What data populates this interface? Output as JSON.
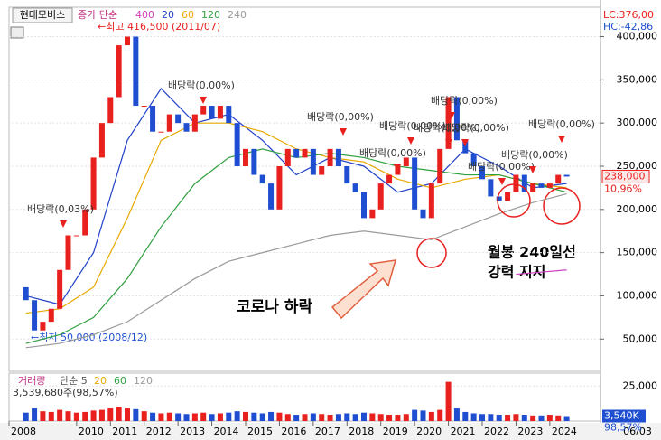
{
  "chart_data": {
    "type": "candlestick",
    "title": "현대모비스",
    "price_legend_label": "종가 단순",
    "x": [
      2008.5,
      2008.75,
      2009,
      2009.25,
      2009.5,
      2009.75,
      2010,
      2010.25,
      2010.5,
      2010.75,
      2011,
      2011.25,
      2011.5,
      2011.75,
      2012,
      2012.25,
      2012.5,
      2012.75,
      2013,
      2013.25,
      2013.5,
      2013.75,
      2014,
      2014.25,
      2014.5,
      2014.75,
      2015,
      2015.25,
      2015.5,
      2015.75,
      2016,
      2016.25,
      2016.5,
      2016.75,
      2017,
      2017.25,
      2017.5,
      2017.75,
      2018,
      2018.25,
      2018.5,
      2018.75,
      2019,
      2019.25,
      2019.5,
      2019.75,
      2020,
      2020.25,
      2020.5,
      2020.75,
      2021,
      2021.25,
      2021.5,
      2021.75,
      2022,
      2022.25,
      2022.5,
      2022.75,
      2023,
      2023.25,
      2023.5,
      2023.75,
      2024,
      2024.25,
      2024.5
    ],
    "open": [
      110000,
      95000,
      60000,
      70000,
      85000,
      130000,
      170000,
      170000,
      200000,
      260000,
      300000,
      330000,
      390000,
      400000,
      320000,
      320000,
      290000,
      290000,
      310000,
      300000,
      290000,
      310000,
      320000,
      305000,
      320000,
      300000,
      250000,
      270000,
      240000,
      230000,
      200000,
      250000,
      270000,
      260000,
      270000,
      240000,
      250000,
      270000,
      250000,
      230000,
      220000,
      190000,
      200000,
      230000,
      240000,
      250000,
      260000,
      200000,
      190000,
      230000,
      270000,
      330000,
      280000,
      265000,
      250000,
      235000,
      215000,
      210000,
      220000,
      240000,
      220000,
      230000,
      225000,
      230000,
      240000
    ],
    "close": [
      95000,
      60000,
      70000,
      85000,
      130000,
      170000,
      170000,
      200000,
      260000,
      300000,
      330000,
      390000,
      400000,
      320000,
      320000,
      290000,
      290000,
      310000,
      300000,
      290000,
      310000,
      320000,
      305000,
      320000,
      300000,
      250000,
      270000,
      240000,
      230000,
      200000,
      250000,
      270000,
      260000,
      270000,
      240000,
      250000,
      270000,
      250000,
      230000,
      220000,
      190000,
      200000,
      230000,
      240000,
      250000,
      260000,
      200000,
      190000,
      230000,
      270000,
      330000,
      280000,
      265000,
      250000,
      235000,
      215000,
      210000,
      220000,
      240000,
      220000,
      230000,
      225000,
      230000,
      240000,
      238000
    ],
    "colors": {
      "up": "#e8201e",
      "down": "#1f4fd0"
    },
    "xlim": [
      2008,
      2025.5
    ],
    "xticks": [
      2008,
      2010,
      2011,
      2012,
      2013,
      2014,
      2015,
      2016,
      2017,
      2018,
      2019,
      2020,
      2021,
      2022,
      2023,
      2024
    ],
    "ylim": [
      12650,
      434000
    ],
    "yticks": [
      {
        "value": 50000,
        "label": "50,000"
      },
      {
        "value": 100000,
        "label": "100,000"
      },
      {
        "value": 150000,
        "label": "150,000"
      },
      {
        "value": 200000,
        "label": "200,000"
      },
      {
        "value": 250000,
        "label": "250,000"
      },
      {
        "value": 300000,
        "label": "300,000"
      },
      {
        "value": 350000,
        "label": "350,000"
      },
      {
        "value": 400000,
        "label": "400,000"
      }
    ],
    "grid": true,
    "moving_averages": [
      {
        "name": "400",
        "color": "#d040c0",
        "x": [
          2023,
          2024.5
        ],
        "values": [
          125000,
          130000
        ]
      },
      {
        "name": "20",
        "color": "#2040c8",
        "x": [
          2008.5,
          2009.5,
          2010.5,
          2011.5,
          2012.5,
          2013.5,
          2014.5,
          2015.5,
          2016.5,
          2017.5,
          2018.5,
          2019.5,
          2020.5,
          2021.5,
          2022.5,
          2023.5,
          2024.5
        ],
        "values": [
          100000,
          90000,
          150000,
          280000,
          340000,
          300000,
          310000,
          280000,
          240000,
          260000,
          250000,
          220000,
          230000,
          270000,
          250000,
          225000,
          230000
        ]
      },
      {
        "name": "60",
        "color": "#e8a800",
        "x": [
          2008.5,
          2009.5,
          2010.5,
          2011.5,
          2012.5,
          2013.5,
          2014.5,
          2015.5,
          2016.5,
          2017.5,
          2018.5,
          2019.5,
          2020.5,
          2021.5,
          2022.5,
          2023.5,
          2024.5
        ],
        "values": [
          80000,
          85000,
          110000,
          190000,
          280000,
          300000,
          300000,
          290000,
          270000,
          260000,
          255000,
          235000,
          225000,
          235000,
          240000,
          230000,
          225000
        ]
      },
      {
        "name": "120",
        "color": "#30a040",
        "x": [
          2008.5,
          2009.5,
          2010.5,
          2011.5,
          2012.5,
          2013.5,
          2014.5,
          2015.5,
          2016.5,
          2017.5,
          2018.5,
          2019.5,
          2020.5,
          2021.5,
          2022.5,
          2023.5,
          2024.5
        ],
        "values": [
          45000,
          55000,
          75000,
          120000,
          180000,
          230000,
          260000,
          270000,
          260000,
          265000,
          260000,
          250000,
          245000,
          240000,
          240000,
          230000,
          220000
        ]
      },
      {
        "name": "240",
        "color": "#9a9a9a",
        "x": [
          2008.5,
          2009.5,
          2010.5,
          2011.5,
          2012.5,
          2013.5,
          2014.5,
          2015.5,
          2016.5,
          2017.5,
          2018.5,
          2019.5,
          2020.5,
          2021.5,
          2022.5,
          2023.5,
          2024.5
        ],
        "values": [
          40000,
          45000,
          55000,
          70000,
          95000,
          120000,
          140000,
          150000,
          160000,
          170000,
          175000,
          170000,
          165000,
          180000,
          195000,
          208000,
          218000
        ]
      }
    ],
    "last_price": {
      "value": 238000,
      "label": "238,000"
    },
    "last_change": "10,96%",
    "lc": "LC:376,00",
    "hc": "HC:-42,86",
    "date_label": "06/03",
    "high_label": "←최고 416,500 (2011/07)",
    "low_label": "←최저 50,000 (2008/12)",
    "dividend_labels": [
      "배당락(0,03%)",
      "배당락(0,00%)",
      "배당락(0,00%)",
      "배당락(0,00%)",
      "배당락(0,00%)",
      "배당락(0,00%)",
      "배당락(0,00%)",
      "배당락(0,00%)",
      "배당락(0,00%)",
      "배당락(0,00%)",
      "배당락(0,00%)"
    ],
    "callouts": [
      "코로나 하락",
      "월봉 240일선",
      "강력 지지"
    ],
    "volume": {
      "label": "거래량",
      "legend_label": "단순 5",
      "ma_legend": [
        {
          "name": "20",
          "color": "#e8a800"
        },
        {
          "name": "60",
          "color": "#30a040"
        },
        {
          "name": "120",
          "color": "#9a9a9a"
        }
      ],
      "info": "3,539,680주(98,57%)",
      "values": [
        6000,
        9000,
        7000,
        6500,
        8000,
        7000,
        6000,
        6500,
        7500,
        8000,
        9000,
        10000,
        9000,
        8500,
        7000,
        6000,
        5500,
        6000,
        5500,
        5000,
        5500,
        6000,
        5000,
        5500,
        6000,
        7000,
        6500,
        6000,
        5500,
        6500,
        6000,
        5000,
        4500,
        5000,
        5500,
        5000,
        4500,
        5000,
        5500,
        5000,
        6000,
        5500,
        5000,
        4500,
        4500,
        5000,
        8000,
        7500,
        6500,
        8000,
        28000,
        9000,
        6500,
        5500,
        5000,
        5000,
        4500,
        4500,
        5000,
        4500,
        4000,
        4000,
        4500,
        4000,
        3540
      ],
      "ylim": [
        0,
        34200
      ],
      "yticks": [
        {
          "value": 25000,
          "label": "25,000"
        }
      ],
      "last": {
        "value": 3540,
        "label": "3,540K"
      },
      "last_pct": "98,57%"
    }
  }
}
